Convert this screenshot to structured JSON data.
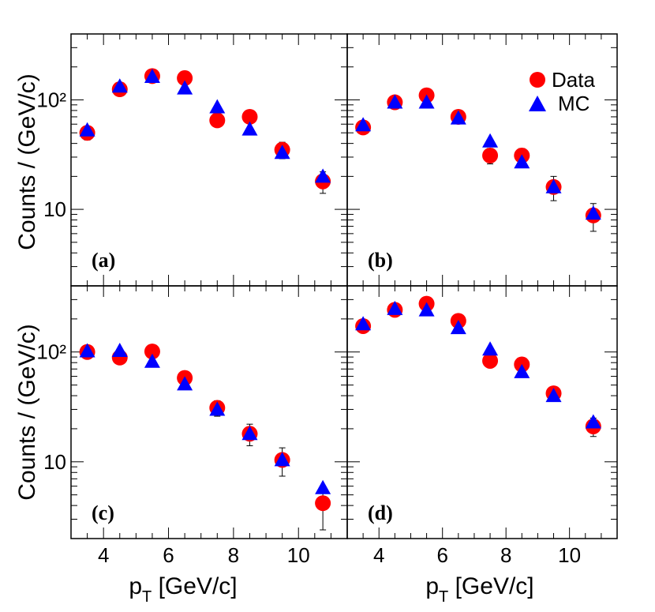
{
  "chart_data": {
    "type": "scatter",
    "xlabel": "p_T [GeV/c]",
    "ylabel": "Counts / (GeV/c)",
    "xlim": [
      3,
      11.5
    ],
    "ylim": [
      2.0,
      400
    ],
    "yscale": "log",
    "x_ticks": [
      4,
      6,
      8,
      10
    ],
    "y_ticks": [
      10,
      100
    ],
    "y_tick_labels": [
      "10",
      "10²"
    ],
    "legend": {
      "placement": "top-right",
      "entries": [
        "Data",
        "MC"
      ]
    },
    "colors": {
      "Data": "#ff0000",
      "MC": "#0000ff"
    },
    "panels": [
      {
        "label": "(a)",
        "x": [
          3.5,
          4.5,
          5.5,
          6.5,
          7.5,
          8.5,
          9.5,
          10.75
        ],
        "series": [
          {
            "name": "Data",
            "marker": "circle",
            "values": [
              50,
              125,
              165,
              158,
              65,
              70,
              35,
              18
            ],
            "err_lo": [
              7,
              10,
              12,
              12,
              7,
              7,
              6,
              4
            ],
            "err_hi": [
              7,
              10,
              12,
              12,
              7,
              7,
              6,
              4
            ]
          },
          {
            "name": "MC",
            "marker": "triangle",
            "values": [
              53,
              133,
              163,
              128,
              86,
              54,
              33,
              20
            ],
            "err_lo": [
              0,
              0,
              0,
              0,
              0,
              0,
              0,
              0
            ],
            "err_hi": [
              0,
              0,
              0,
              0,
              0,
              0,
              0,
              0
            ]
          }
        ]
      },
      {
        "label": "(b)",
        "x": [
          3.5,
          4.5,
          5.5,
          6.5,
          7.5,
          8.5,
          9.5,
          10.75
        ],
        "series": [
          {
            "name": "Data",
            "marker": "circle",
            "values": [
              56,
              95,
              110,
              70,
              31,
              31,
              16,
              8.8
            ],
            "err_lo": [
              6,
              8,
              9,
              7,
              5,
              5,
              4,
              2.5
            ],
            "err_hi": [
              6,
              8,
              9,
              7,
              5,
              5,
              4,
              2.5
            ]
          },
          {
            "name": "MC",
            "marker": "triangle",
            "values": [
              59,
              95,
              95,
              68,
              42,
              27,
              16,
              9.2
            ],
            "err_lo": [
              0,
              0,
              0,
              0,
              0,
              0,
              0,
              0
            ],
            "err_hi": [
              0,
              0,
              0,
              0,
              0,
              0,
              0,
              0
            ]
          }
        ]
      },
      {
        "label": "(c)",
        "x": [
          3.5,
          4.5,
          5.5,
          6.5,
          7.5,
          8.5,
          9.5,
          10.75
        ],
        "series": [
          {
            "name": "Data",
            "marker": "circle",
            "values": [
              100,
              89,
              101,
              58,
              31,
              18,
              10.4,
              4.2
            ],
            "err_lo": [
              8,
              8,
              8,
              6,
              5,
              4,
              3,
              1.8
            ],
            "err_hi": [
              8,
              8,
              8,
              6,
              5,
              4,
              3,
              1.8
            ]
          },
          {
            "name": "MC",
            "marker": "triangle",
            "values": [
              102,
              103,
              82,
              51,
              30,
              18,
              10.4,
              5.8
            ],
            "err_lo": [
              0,
              0,
              0,
              0,
              0,
              0,
              0,
              0
            ],
            "err_hi": [
              0,
              0,
              0,
              0,
              0,
              0,
              0,
              0
            ]
          }
        ]
      },
      {
        "label": "(d)",
        "x": [
          3.5,
          4.5,
          5.5,
          6.5,
          7.5,
          8.5,
          9.5,
          10.75
        ],
        "series": [
          {
            "name": "Data",
            "marker": "circle",
            "values": [
              172,
              242,
              275,
              192,
              83,
              77,
              42,
              21
            ],
            "err_lo": [
              12,
              15,
              16,
              13,
              8,
              8,
              6,
              4
            ],
            "err_hi": [
              12,
              15,
              16,
              13,
              8,
              8,
              6,
              4
            ]
          },
          {
            "name": "MC",
            "marker": "triangle",
            "values": [
              180,
              248,
              241,
              166,
              106,
              66,
              40,
              23
            ],
            "err_lo": [
              0,
              0,
              0,
              0,
              0,
              0,
              0,
              0
            ],
            "err_hi": [
              0,
              0,
              0,
              0,
              0,
              0,
              0,
              0
            ]
          }
        ]
      }
    ]
  }
}
